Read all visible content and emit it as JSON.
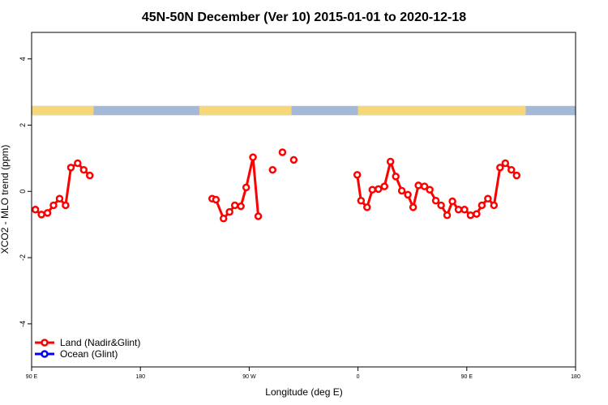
{
  "chart_data": {
    "type": "line",
    "title": "45N-50N December (Ver 10)   2015-01-01 to 2020-12-18",
    "xlabel": "Longitude (deg E)",
    "ylabel": "XCO2 - MLO trend (ppm)",
    "xlim": [
      90,
      450
    ],
    "ylim": [
      -5.3,
      4.8
    ],
    "x_ticks": [
      {
        "value": 90,
        "label": "90 E"
      },
      {
        "value": 162,
        "label": "180"
      },
      {
        "value": 234,
        "label": "90 W"
      },
      {
        "value": 306,
        "label": "0"
      },
      {
        "value": 378,
        "label": "90 E"
      },
      {
        "value": 450,
        "label": "180"
      }
    ],
    "y_ticks": [
      {
        "value": -4,
        "label": "-4"
      },
      {
        "value": -2,
        "label": "-2"
      },
      {
        "value": 0,
        "label": "0"
      },
      {
        "value": 2,
        "label": "2"
      },
      {
        "value": 4,
        "label": "4"
      }
    ],
    "legend_position": "bottom-left",
    "grid": false,
    "land_strip": {
      "y_range": [
        2.3,
        2.58
      ],
      "land_color": "#f5d77a",
      "ocean_color": "#a4b8d8",
      "land_segments": [
        [
          90,
          131
        ],
        [
          201,
          262
        ],
        [
          306,
          417
        ]
      ]
    },
    "series": [
      {
        "name": "Land (Nadir&Glint)",
        "color": "#ff0000",
        "segments": [
          [
            [
              92.5,
              -0.55
            ],
            [
              96.5,
              -0.7
            ],
            [
              100.5,
              -0.65
            ],
            [
              104.5,
              -0.42
            ],
            [
              108.5,
              -0.22
            ],
            [
              112.5,
              -0.42
            ],
            [
              116,
              0.72
            ],
            [
              120.5,
              0.85
            ],
            [
              124.5,
              0.65
            ],
            [
              128.5,
              0.48
            ]
          ],
          [
            [
              209.5,
              -0.22
            ],
            [
              212,
              -0.25
            ],
            [
              217,
              -0.82
            ],
            [
              221,
              -0.62
            ],
            [
              224.5,
              -0.42
            ],
            [
              228.5,
              -0.45
            ],
            [
              232,
              0.12
            ],
            [
              236.5,
              1.03
            ],
            [
              240,
              -0.75
            ]
          ],
          [
            [
              305.5,
              0.5
            ],
            [
              308,
              -0.28
            ],
            [
              312,
              -0.48
            ],
            [
              315.5,
              0.05
            ],
            [
              319.5,
              0.07
            ],
            [
              323.5,
              0.15
            ],
            [
              327.5,
              0.9
            ],
            [
              331,
              0.45
            ],
            [
              335,
              0.02
            ],
            [
              339,
              -0.1
            ],
            [
              342.5,
              -0.48
            ],
            [
              346,
              0.18
            ],
            [
              350,
              0.15
            ],
            [
              353.5,
              0.05
            ],
            [
              357.5,
              -0.28
            ],
            [
              361,
              -0.42
            ],
            [
              365,
              -0.72
            ],
            [
              368.5,
              -0.3
            ],
            [
              372.5,
              -0.55
            ],
            [
              376.5,
              -0.55
            ],
            [
              380.5,
              -0.72
            ],
            [
              384.5,
              -0.68
            ],
            [
              388,
              -0.42
            ],
            [
              392,
              -0.22
            ],
            [
              396,
              -0.42
            ],
            [
              400,
              0.72
            ],
            [
              403.5,
              0.85
            ],
            [
              407.5,
              0.65
            ],
            [
              411,
              0.48
            ]
          ]
        ],
        "isolated_points": [
          [
            249.5,
            0.65
          ],
          [
            256,
            1.18
          ],
          [
            263.5,
            0.95
          ]
        ]
      },
      {
        "name": "Ocean (Glint)",
        "color": "#0000ff",
        "segments": [],
        "isolated_points": []
      }
    ]
  }
}
